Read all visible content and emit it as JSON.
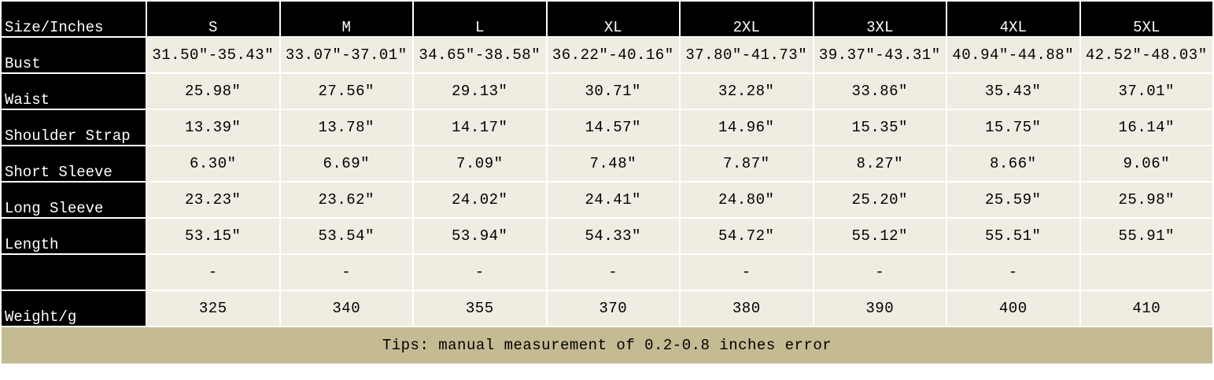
{
  "table": {
    "header": [
      "Size/Inches",
      "S",
      "M",
      "L",
      "XL",
      "2XL",
      "3XL",
      "4XL",
      "5XL"
    ],
    "rows": [
      [
        "Bust",
        "31.50″-35.43″",
        "33.07″-37.01″",
        "34.65″-38.58″",
        "36.22″-40.16″",
        "37.80″-41.73″",
        "39.37″-43.31″",
        "40.94″-44.88″",
        "42.52″-48.03″"
      ],
      [
        "Waist",
        "25.98″",
        "27.56″",
        "29.13″",
        "30.71″",
        "32.28″",
        "33.86″",
        "35.43″",
        "37.01″"
      ],
      [
        "Shoulder Strap",
        "13.39″",
        "13.78″",
        "14.17″",
        "14.57″",
        "14.96″",
        "15.35″",
        "15.75″",
        "16.14″"
      ],
      [
        "Short Sleeve",
        "6.30″",
        "6.69″",
        "7.09″",
        "7.48″",
        "7.87″",
        "8.27″",
        "8.66″",
        "9.06″"
      ],
      [
        "Long Sleeve",
        "23.23″",
        "23.62″",
        "24.02″",
        "24.41″",
        "24.80″",
        "25.20″",
        "25.59″",
        "25.98″"
      ],
      [
        "Length",
        "53.15″",
        "53.54″",
        "53.94″",
        "54.33″",
        "54.72″",
        "55.12″",
        "55.51″",
        "55.91″"
      ],
      [
        null,
        "-",
        "-",
        "-",
        "-",
        "-",
        "-",
        "-",
        null
      ],
      [
        "Weight/g",
        325,
        340,
        355,
        370,
        380,
        390,
        400,
        410
      ]
    ],
    "tips": "Tips: manual measurement of 0.2-0.8 inches error"
  }
}
